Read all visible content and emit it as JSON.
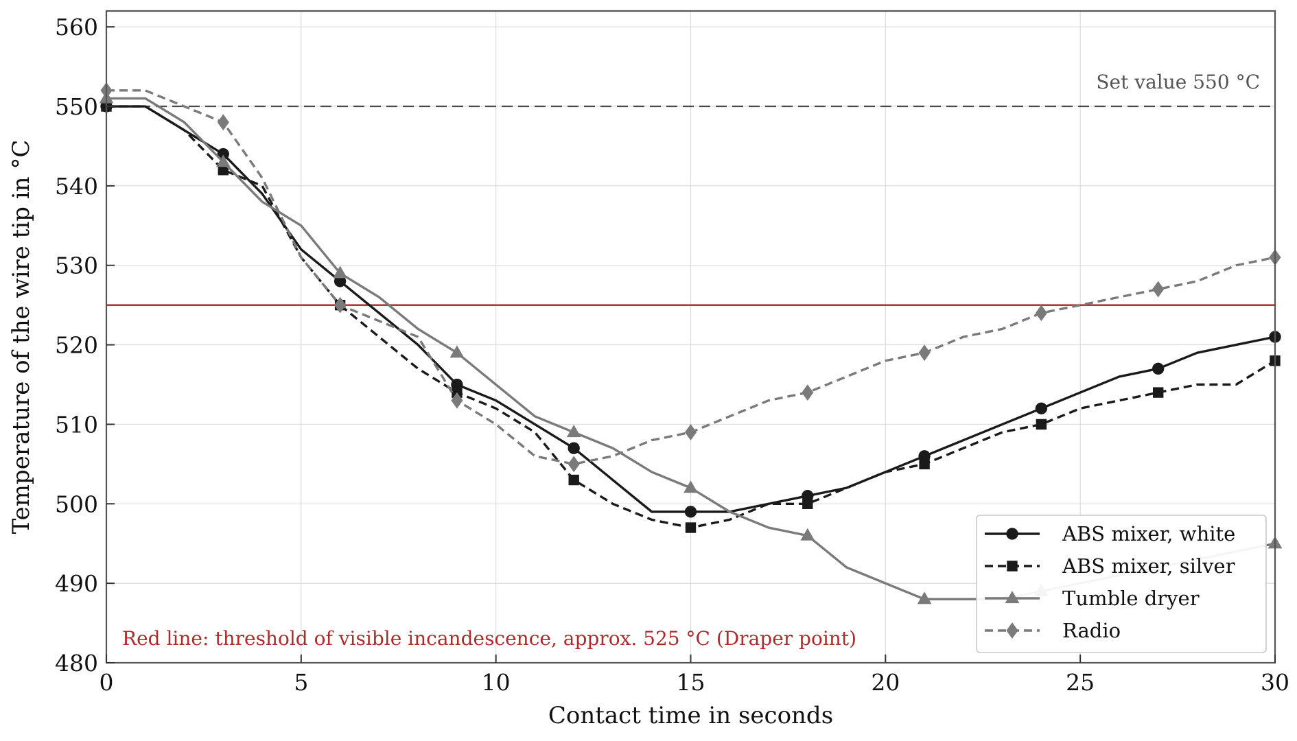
{
  "chart_data": {
    "type": "line",
    "xlabel": "Contact time in seconds",
    "ylabel": "Temperature of the wire tip in °C",
    "xlim": [
      0,
      30
    ],
    "ylim": [
      480,
      562
    ],
    "x_ticks": [
      0,
      5,
      10,
      15,
      20,
      25,
      30
    ],
    "y_ticks": [
      480,
      490,
      500,
      510,
      520,
      530,
      540,
      550,
      560
    ],
    "grid": true,
    "legend_position": "bottom-right",
    "reference_lines": [
      {
        "y": 550,
        "style": "dashed",
        "color": "#4a4a4a",
        "label": "Set value 550 °C"
      },
      {
        "y": 525,
        "style": "solid",
        "color": "#b03a3a",
        "label": "Red line: threshold of visible incandescence, approx. 525 °C (Draper point)"
      }
    ],
    "series": [
      {
        "name": "ABS mixer, white",
        "color": "#1a1a1a",
        "dash": "solid",
        "marker": "circle",
        "x": [
          0,
          1,
          2,
          3,
          4,
          5,
          6,
          7,
          8,
          9,
          10,
          11,
          12,
          13,
          14,
          15,
          16,
          17,
          18,
          19,
          20,
          21,
          22,
          23,
          24,
          25,
          26,
          27,
          28,
          29,
          30
        ],
        "y": [
          550,
          550,
          547,
          544,
          539,
          532,
          528,
          524,
          520,
          515,
          513,
          510,
          507,
          503,
          499,
          499,
          499,
          500,
          501,
          502,
          504,
          506,
          508,
          510,
          512,
          514,
          516,
          517,
          519,
          520,
          521
        ],
        "marker_every": 3
      },
      {
        "name": "ABS mixer, silver",
        "color": "#1a1a1a",
        "dash": "dashed",
        "marker": "square",
        "x": [
          0,
          1,
          2,
          3,
          4,
          5,
          6,
          7,
          8,
          9,
          10,
          11,
          12,
          13,
          14,
          15,
          16,
          17,
          18,
          19,
          20,
          21,
          22,
          23,
          24,
          25,
          26,
          27,
          28,
          29,
          30
        ],
        "y": [
          550,
          550,
          547,
          542,
          540,
          531,
          525,
          521,
          517,
          514,
          512,
          509,
          503,
          500,
          498,
          497,
          498,
          500,
          500,
          502,
          504,
          505,
          507,
          509,
          510,
          512,
          513,
          514,
          515,
          515,
          518
        ],
        "marker_every": 3
      },
      {
        "name": "Tumble dryer",
        "color": "#7a7a7a",
        "dash": "solid",
        "marker": "triangle",
        "x": [
          0,
          1,
          2,
          3,
          4,
          5,
          6,
          7,
          8,
          9,
          10,
          11,
          12,
          13,
          14,
          15,
          16,
          17,
          18,
          19,
          20,
          21,
          22,
          23,
          24,
          25,
          26,
          27,
          28,
          29,
          30
        ],
        "y": [
          551,
          551,
          548,
          543,
          538,
          535,
          529,
          526,
          522,
          519,
          515,
          511,
          509,
          507,
          504,
          502,
          499,
          497,
          496,
          492,
          490,
          488,
          488,
          488,
          489,
          490,
          491,
          492,
          493,
          494,
          495
        ],
        "marker_every": 3
      },
      {
        "name": "Radio",
        "color": "#7a7a7a",
        "dash": "dashed",
        "marker": "diamond",
        "x": [
          0,
          1,
          2,
          3,
          4,
          5,
          6,
          7,
          8,
          9,
          10,
          11,
          12,
          13,
          14,
          15,
          16,
          17,
          18,
          19,
          20,
          21,
          22,
          23,
          24,
          25,
          26,
          27,
          28,
          29,
          30
        ],
        "y": [
          552,
          552,
          550,
          548,
          541,
          531,
          525,
          523,
          521,
          513,
          510,
          506,
          505,
          506,
          508,
          509,
          511,
          513,
          514,
          516,
          518,
          519,
          521,
          522,
          524,
          525,
          526,
          527,
          528,
          530,
          531
        ],
        "marker_every": 3
      }
    ]
  }
}
